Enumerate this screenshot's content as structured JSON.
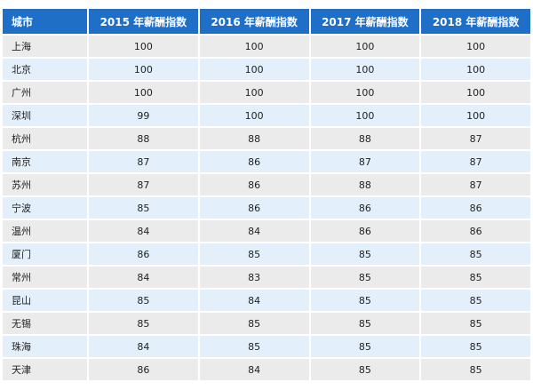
{
  "table": {
    "header": [
      "城市",
      "2015 年薪酬指数",
      "2016 年薪酬指数",
      "2017 年薪酬指数",
      "2018 年薪酬指数"
    ],
    "rows": [
      [
        "上海",
        100,
        100,
        100,
        100
      ],
      [
        "北京",
        100,
        100,
        100,
        100
      ],
      [
        "广州",
        100,
        100,
        100,
        100
      ],
      [
        "深圳",
        99,
        100,
        100,
        100
      ],
      [
        "杭州",
        88,
        88,
        88,
        87
      ],
      [
        "南京",
        87,
        86,
        87,
        87
      ],
      [
        "苏州",
        87,
        86,
        88,
        87
      ],
      [
        "宁波",
        85,
        86,
        86,
        86
      ],
      [
        "温州",
        84,
        84,
        86,
        86
      ],
      [
        "厦门",
        86,
        85,
        85,
        85
      ],
      [
        "常州",
        84,
        83,
        85,
        85
      ],
      [
        "昆山",
        85,
        84,
        85,
        85
      ],
      [
        "无锡",
        85,
        85,
        85,
        85
      ],
      [
        "珠海",
        84,
        85,
        85,
        85
      ],
      [
        "天津",
        86,
        84,
        85,
        85
      ]
    ]
  }
}
